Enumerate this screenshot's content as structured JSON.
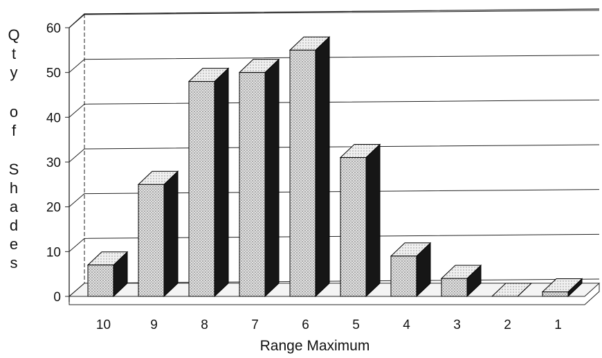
{
  "chart_data": {
    "type": "bar",
    "title": "",
    "xlabel": "Range Maximum",
    "ylabel": "Qty of Shades",
    "categories": [
      "10",
      "9",
      "8",
      "7",
      "6",
      "5",
      "4",
      "3",
      "2",
      "1"
    ],
    "values": [
      7,
      25,
      48,
      50,
      55,
      31,
      9,
      4,
      0,
      1
    ],
    "ylim": [
      0,
      60
    ],
    "yticks": [
      "0",
      "10",
      "20",
      "30",
      "40",
      "50",
      "60"
    ],
    "grid": true,
    "legend": "none",
    "style": "3d-bars",
    "colors": {
      "front": "#d6d6d6",
      "top": "#ececec",
      "side": "#161616",
      "grid": "#222222"
    }
  }
}
